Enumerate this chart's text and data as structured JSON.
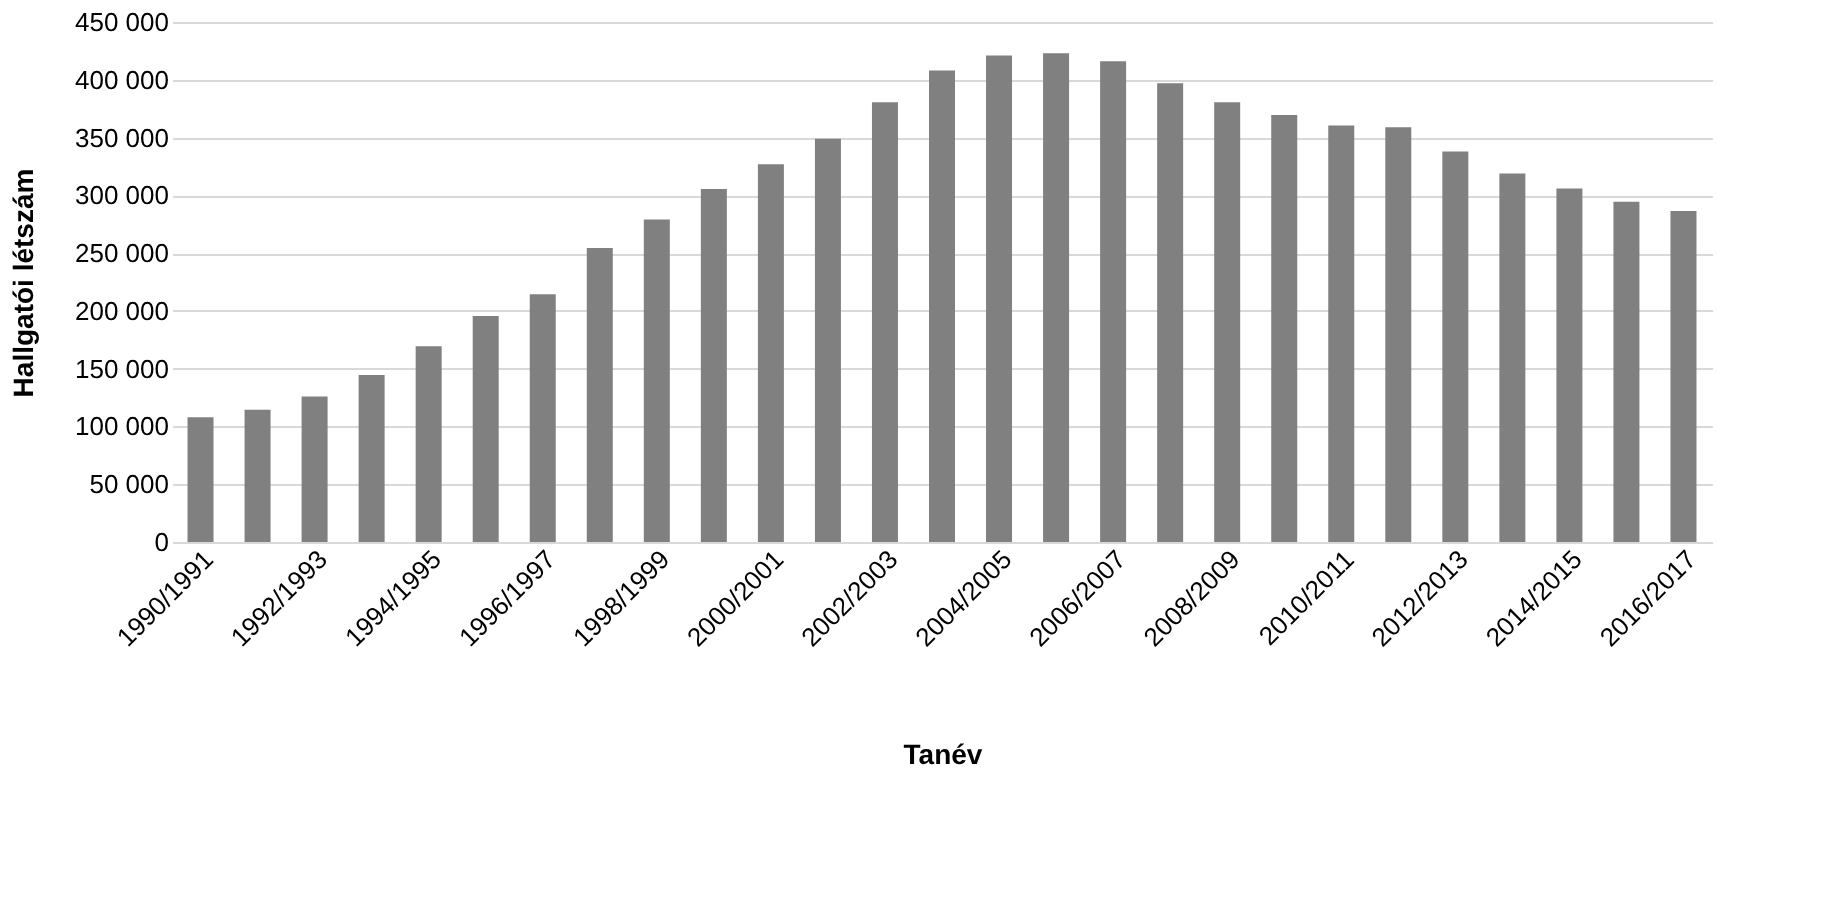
{
  "chart_data": {
    "type": "bar",
    "xlabel": "Tanév",
    "ylabel": "Hallgatói létszám",
    "categories": [
      "1990/1991",
      null,
      "1992/1993",
      null,
      "1994/1995",
      null,
      "1996/1997",
      null,
      "1998/1999",
      null,
      "2000/2001",
      null,
      "2002/2003",
      null,
      "2004/2005",
      null,
      "2006/2007",
      null,
      "2008/2009",
      null,
      "2010/2011",
      null,
      "2012/2013",
      null,
      "2014/2015",
      null,
      "2016/2017"
    ],
    "values": [
      108000,
      114500,
      126000,
      144500,
      169500,
      195500,
      214500,
      254500,
      279000,
      305500,
      327000,
      349000,
      380500,
      408000,
      421000,
      423000,
      416000,
      397000,
      380500,
      369500,
      360500,
      359000,
      338000,
      319000,
      306000,
      294500,
      286500
    ],
    "color": "#808080",
    "ylim": [
      0,
      450000
    ],
    "yticks": [
      {
        "value": 0,
        "label": "0"
      },
      {
        "value": 50000,
        "label": "50 000"
      },
      {
        "value": 100000,
        "label": "100 000"
      },
      {
        "value": 150000,
        "label": "150 000"
      },
      {
        "value": 200000,
        "label": "200 000"
      },
      {
        "value": 250000,
        "label": "250 000"
      },
      {
        "value": 300000,
        "label": "300 000"
      },
      {
        "value": 350000,
        "label": "350 000"
      },
      {
        "value": 400000,
        "label": "400 000"
      },
      {
        "value": 450000,
        "label": "450 000"
      }
    ],
    "grid": "y"
  }
}
